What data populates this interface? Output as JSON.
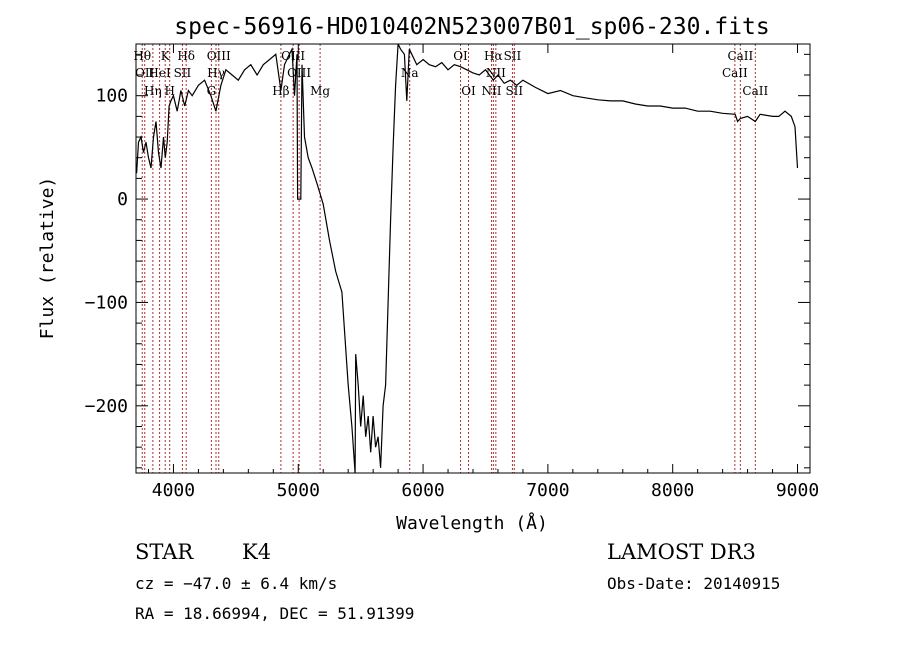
{
  "chart_data": {
    "type": "line",
    "title": "spec-56916-HD010402N523007B01_sp06-230.fits",
    "xlabel": "Wavelength (Å)",
    "ylabel": "Flux (relative)",
    "xlim": [
      3700,
      9100
    ],
    "ylim": [
      -265,
      150
    ],
    "x_ticks": [
      {
        "value": 4000,
        "label": "4000"
      },
      {
        "value": 5000,
        "label": "5000"
      },
      {
        "value": 6000,
        "label": "6000"
      },
      {
        "value": 7000,
        "label": "7000"
      },
      {
        "value": 8000,
        "label": "8000"
      },
      {
        "value": 9000,
        "label": "9000"
      }
    ],
    "y_ticks": [
      {
        "value": -200,
        "label": "−200"
      },
      {
        "value": -100,
        "label": "−100"
      },
      {
        "value": 0,
        "label": "0"
      },
      {
        "value": 100,
        "label": "100"
      }
    ],
    "line_color": "#000000",
    "marker_color": "#b03030",
    "series": [
      {
        "x": [
          3705,
          3720,
          3740,
          3760,
          3780,
          3800,
          3820,
          3840,
          3860,
          3880,
          3900,
          3920,
          3935,
          3950,
          3965,
          3980,
          4000,
          4030,
          4060,
          4090,
          4120,
          4150,
          4200,
          4250,
          4300,
          4340,
          4380,
          4420,
          4470,
          4520,
          4570,
          4620,
          4670,
          4720,
          4770,
          4820,
          4861,
          4890,
          4920,
          4950,
          4970,
          4990,
          4995,
          5020,
          5030,
          5050,
          5080,
          5110,
          5150,
          5200,
          5250,
          5300,
          5350,
          5400,
          5430,
          5455,
          5460,
          5480,
          5500,
          5520,
          5540,
          5560,
          5580,
          5600,
          5620,
          5640,
          5660,
          5680,
          5700,
          5720,
          5740,
          5760,
          5780,
          5800,
          5820,
          5850,
          5870,
          5890,
          5910,
          5950,
          6000,
          6050,
          6100,
          6150,
          6200,
          6250,
          6300,
          6350,
          6400,
          6450,
          6500,
          6563,
          6600,
          6650,
          6700,
          6750,
          6800,
          6900,
          7000,
          7100,
          7200,
          7300,
          7400,
          7500,
          7600,
          7700,
          7800,
          7900,
          8000,
          8100,
          8200,
          8300,
          8400,
          8500,
          8520,
          8542,
          8600,
          8662,
          8700,
          8800,
          8850,
          8900,
          8950,
          8980,
          9000
        ],
        "y": [
          25,
          55,
          60,
          45,
          55,
          40,
          30,
          60,
          75,
          45,
          30,
          60,
          40,
          55,
          90,
          95,
          100,
          85,
          105,
          90,
          105,
          100,
          110,
          115,
          100,
          85,
          110,
          125,
          120,
          115,
          125,
          130,
          120,
          130,
          135,
          140,
          105,
          130,
          138,
          145,
          100,
          140,
          0,
          0,
          130,
          60,
          40,
          30,
          15,
          -5,
          -40,
          -70,
          -90,
          -180,
          -220,
          -265,
          -150,
          -180,
          -220,
          -190,
          -230,
          -210,
          -245,
          -210,
          -240,
          -230,
          -260,
          -200,
          -180,
          -100,
          -20,
          50,
          110,
          150,
          145,
          140,
          95,
          145,
          140,
          130,
          135,
          130,
          128,
          132,
          125,
          130,
          128,
          125,
          122,
          120,
          125,
          115,
          120,
          112,
          115,
          110,
          115,
          108,
          102,
          105,
          100,
          98,
          96,
          95,
          95,
          92,
          90,
          90,
          88,
          88,
          85,
          85,
          83,
          82,
          75,
          78,
          80,
          75,
          82,
          80,
          80,
          85,
          80,
          70,
          30
        ]
      }
    ],
    "line_markers": [
      {
        "x": 3750,
        "label": "Hθ",
        "row": 1
      },
      {
        "x": 3770,
        "label": "OII",
        "row": 2
      },
      {
        "x": 3835,
        "label": "Hη",
        "row": 3
      },
      {
        "x": 3889,
        "label": "HeI",
        "row": 2
      },
      {
        "x": 3934,
        "label": "K",
        "row": 1
      },
      {
        "x": 3970,
        "label": "H",
        "row": 3
      },
      {
        "x": 4072,
        "label": "SII",
        "row": 2
      },
      {
        "x": 4102,
        "label": "Hδ",
        "row": 1
      },
      {
        "x": 4304,
        "label": "G",
        "row": 3
      },
      {
        "x": 4341,
        "label": "Hγ",
        "row": 2
      },
      {
        "x": 4363,
        "label": "OIII",
        "row": 1
      },
      {
        "x": 4861,
        "label": "Hβ",
        "row": 3
      },
      {
        "x": 4959,
        "label": "OIII",
        "row": 1
      },
      {
        "x": 5007,
        "label": "OIII",
        "row": 2
      },
      {
        "x": 5175,
        "label": "Mg",
        "row": 3
      },
      {
        "x": 5893,
        "label": "Na",
        "row": 2
      },
      {
        "x": 6300,
        "label": "OI",
        "row": 1
      },
      {
        "x": 6364,
        "label": "OI",
        "row": 3
      },
      {
        "x": 6548,
        "label": "NII",
        "row": 3
      },
      {
        "x": 6563,
        "label": "Hα",
        "row": 1
      },
      {
        "x": 6583,
        "label": "NII",
        "row": 2
      },
      {
        "x": 6716,
        "label": "SII",
        "row": 1
      },
      {
        "x": 6731,
        "label": "SII",
        "row": 3
      },
      {
        "x": 8498,
        "label": "CaII",
        "row": 2
      },
      {
        "x": 8542,
        "label": "CaII",
        "row": 1
      },
      {
        "x": 8662,
        "label": "CaII",
        "row": 3
      }
    ]
  },
  "info": {
    "object_class": "STAR",
    "subclass": "K4",
    "survey": "LAMOST DR3",
    "redshift": "cz = −47.0 ± 6.4 km/s",
    "obs_date": "Obs-Date: 20140915",
    "coords": "RA =  18.66994, DEC =  51.91399"
  }
}
